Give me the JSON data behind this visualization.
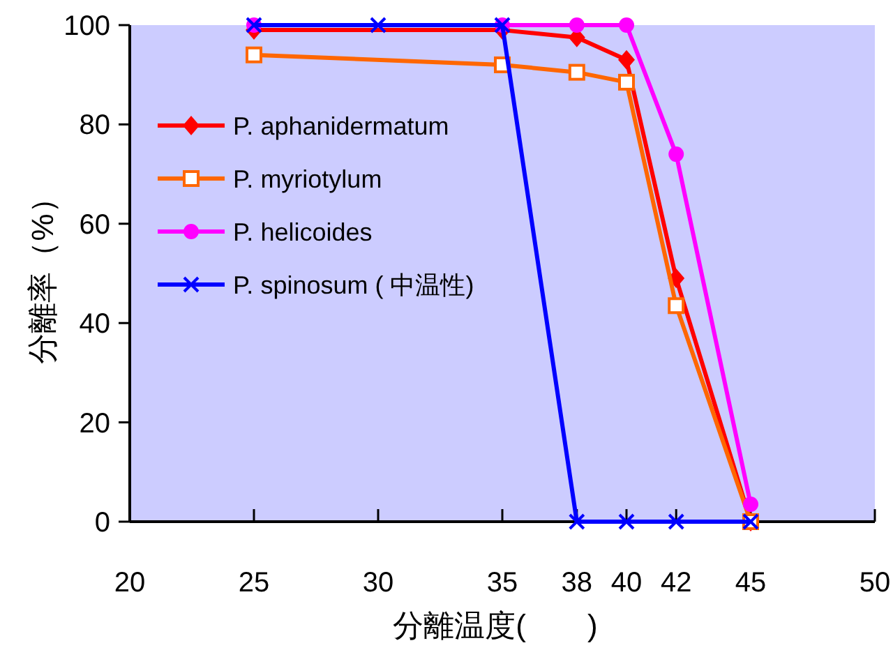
{
  "chart_data": {
    "type": "line",
    "xlabel": "分離温度(　　)",
    "ylabel": "分離率（%）",
    "xlim": [
      20,
      50
    ],
    "xticks": [
      20,
      25,
      30,
      35,
      38,
      40,
      42,
      45,
      50
    ],
    "ylim": [
      0,
      100
    ],
    "yticks": [
      0,
      20,
      40,
      60,
      80,
      100
    ],
    "grid": false,
    "legend": "left",
    "line_style": "solid",
    "series": [
      {
        "name": "P. aphanidermatum",
        "color": "#ff0000",
        "marker": "diamond",
        "x": [
          25,
          35,
          38,
          40,
          42,
          45
        ],
        "values": [
          99,
          99,
          97.5,
          93,
          49,
          0
        ]
      },
      {
        "name": "P. myriotylum",
        "color": "#ff6600",
        "marker": "square",
        "x": [
          25,
          35,
          38,
          40,
          42,
          45
        ],
        "values": [
          94,
          92,
          90.5,
          88.5,
          43.5,
          0
        ]
      },
      {
        "name": "P. helicoides",
        "color": "#ff00ff",
        "marker": "circle",
        "x": [
          25,
          35,
          38,
          40,
          42,
          45
        ],
        "values": [
          100,
          100,
          100,
          100,
          74,
          3.5
        ]
      },
      {
        "name": "P. spinosum ( 中温性)",
        "color": "#0000ff",
        "marker": "cross",
        "x": [
          25,
          30,
          35,
          38,
          40,
          42,
          45
        ],
        "values": [
          100,
          100,
          100,
          0,
          0,
          0,
          0
        ]
      }
    ]
  }
}
